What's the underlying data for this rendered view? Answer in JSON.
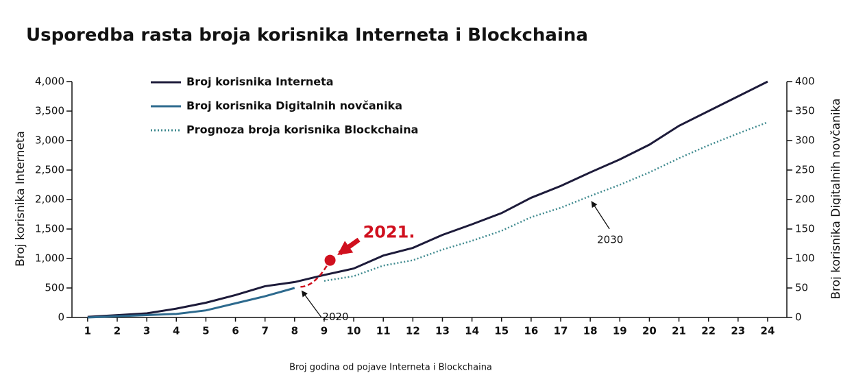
{
  "chart_data": {
    "type": "line",
    "title": "Usporedba rasta broja korisnika Interneta i Blockchaina",
    "xlabel": "Broj godina od pojave Interneta i Blockchaina",
    "ylabel": "Broj korisnika Interneta",
    "y2label": "Broj korisnika Digitalnih novčanika",
    "xlim": [
      0.47,
      24.65
    ],
    "xticks": [
      1,
      2,
      3,
      4,
      5,
      6,
      7,
      8,
      9,
      10,
      11,
      12,
      13,
      14,
      15,
      16,
      17,
      18,
      19,
      20,
      21,
      22,
      23,
      24
    ],
    "ylim": [
      0,
      4000
    ],
    "yticks": [
      0,
      500,
      {
        "value": 1000,
        "label": "1,000"
      },
      {
        "value": 1500,
        "label": "1,500"
      },
      {
        "value": 2000,
        "label": "2,000"
      },
      {
        "value": 2500,
        "label": "2,500"
      },
      {
        "value": 3000,
        "label": "3,000"
      },
      {
        "value": 3500,
        "label": "3,500"
      },
      {
        "value": 4000,
        "label": "4,000"
      }
    ],
    "y2lim": [
      0,
      400
    ],
    "y2ticks": [
      0,
      50,
      100,
      150,
      200,
      250,
      300,
      350,
      400
    ],
    "series": [
      {
        "name": "Broj korisnika Interneta",
        "color": "#1d1b3a",
        "style": "solid",
        "x": [
          1,
          2,
          3,
          4,
          5,
          6,
          7,
          8,
          9,
          10,
          11,
          12,
          13,
          14,
          15,
          16,
          17,
          18,
          19,
          20,
          21,
          22,
          23,
          24
        ],
        "values": [
          10,
          40,
          70,
          150,
          250,
          380,
          530,
          600,
          720,
          830,
          1050,
          1180,
          1400,
          1580,
          1770,
          2030,
          2230,
          2460,
          2680,
          2930,
          3250,
          3500,
          3750,
          4000
        ]
      },
      {
        "name": "Broj korisnika Digitalnih novčanika",
        "color": "#2d6a8e",
        "style": "solid",
        "axis": "y2",
        "x": [
          1,
          2,
          3,
          4,
          5,
          6,
          7,
          8
        ],
        "values": [
          0,
          2,
          4,
          6,
          12,
          24,
          36,
          50
        ]
      },
      {
        "name": "Prognoza broja korisnika Blockchaina",
        "color": "#3f8a8f",
        "style": "dotted",
        "axis": "y2",
        "x": [
          9,
          10,
          11,
          12,
          13,
          14,
          15,
          16,
          17,
          18,
          19,
          20,
          21,
          22,
          23,
          24
        ],
        "values": [
          62,
          70,
          88,
          97,
          115,
          130,
          147,
          170,
          186,
          206,
          225,
          246,
          270,
          292,
          312,
          331
        ]
      }
    ],
    "annotations": [
      {
        "text": "2021.",
        "x": 9.2,
        "y": 970,
        "color": "#d0101e"
      },
      {
        "text": "2020",
        "x": 8.2,
        "y": 520
      },
      {
        "text": "2030",
        "x": 18,
        "y": 2060
      }
    ]
  }
}
